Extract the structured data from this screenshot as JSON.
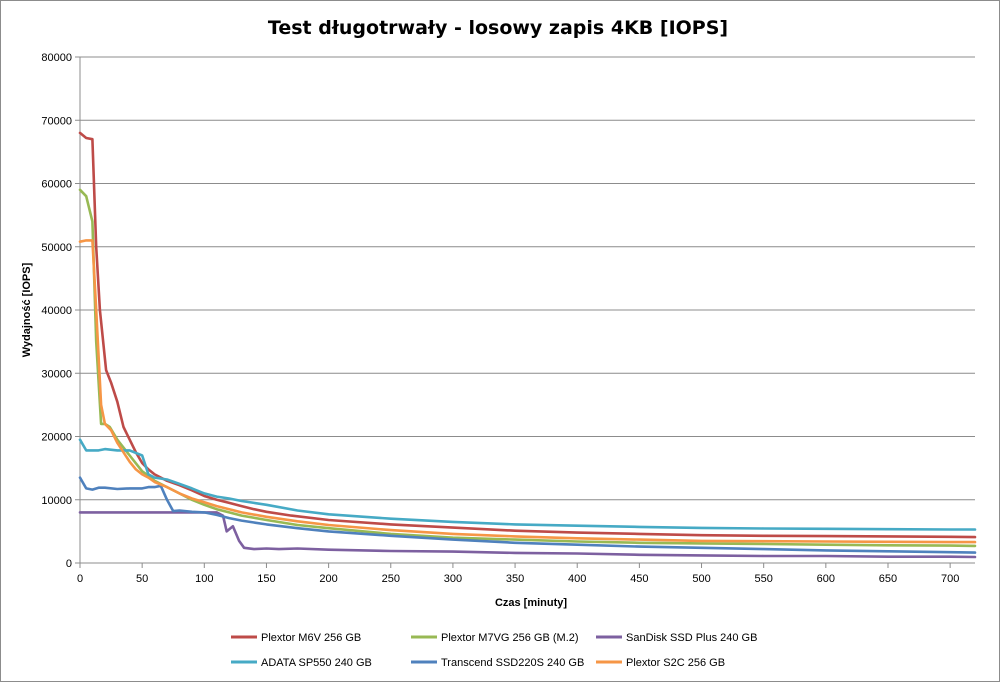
{
  "chart_data": {
    "type": "line",
    "title": "Test długotrwały - losowy zapis 4KB [IOPS]",
    "xlabel": "Czas [minuty]",
    "ylabel": "Wydajność [IOPS]",
    "xlim": [
      0,
      720
    ],
    "ylim": [
      0,
      80000
    ],
    "x_ticks": [
      "0",
      "50",
      "100",
      "150",
      "200",
      "250",
      "300",
      "350",
      "400",
      "450",
      "500",
      "550",
      "600",
      "650",
      "700"
    ],
    "y_ticks": [
      "0",
      "10000",
      "20000",
      "30000",
      "40000",
      "50000",
      "60000",
      "70000",
      "80000"
    ],
    "grid": "horizontal",
    "legend_position": "bottom",
    "series": [
      {
        "name": "Plextor M6V 256 GB",
        "color": "#be4b48",
        "points": [
          [
            0,
            68000
          ],
          [
            5,
            67200
          ],
          [
            10,
            67000
          ],
          [
            13,
            50000
          ],
          [
            16,
            40000
          ],
          [
            21,
            30500
          ],
          [
            25,
            28500
          ],
          [
            30,
            25500
          ],
          [
            35,
            21500
          ],
          [
            40,
            19500
          ],
          [
            45,
            17500
          ],
          [
            50,
            15800
          ],
          [
            55,
            14800
          ],
          [
            60,
            14000
          ],
          [
            70,
            13000
          ],
          [
            80,
            12300
          ],
          [
            90,
            11500
          ],
          [
            100,
            10600
          ],
          [
            110,
            10000
          ],
          [
            120,
            9500
          ],
          [
            130,
            9000
          ],
          [
            140,
            8500
          ],
          [
            150,
            8100
          ],
          [
            170,
            7500
          ],
          [
            200,
            6800
          ],
          [
            250,
            6100
          ],
          [
            300,
            5600
          ],
          [
            350,
            5100
          ],
          [
            400,
            4800
          ],
          [
            450,
            4600
          ],
          [
            500,
            4400
          ],
          [
            550,
            4300
          ],
          [
            600,
            4250
          ],
          [
            650,
            4200
          ],
          [
            700,
            4150
          ],
          [
            720,
            4100
          ]
        ]
      },
      {
        "name": "Plextor M7VG 256 GB (M.2)",
        "color": "#98b954",
        "points": [
          [
            0,
            59000
          ],
          [
            5,
            58000
          ],
          [
            10,
            54000
          ],
          [
            13,
            35000
          ],
          [
            17,
            22000
          ],
          [
            20,
            22000
          ],
          [
            24,
            21500
          ],
          [
            30,
            19500
          ],
          [
            40,
            17000
          ],
          [
            50,
            14500
          ],
          [
            55,
            13800
          ],
          [
            60,
            13000
          ],
          [
            70,
            12000
          ],
          [
            80,
            11000
          ],
          [
            90,
            10000
          ],
          [
            100,
            9200
          ],
          [
            110,
            8500
          ],
          [
            120,
            8000
          ],
          [
            130,
            7500
          ],
          [
            150,
            6800
          ],
          [
            175,
            6000
          ],
          [
            200,
            5500
          ],
          [
            250,
            4600
          ],
          [
            300,
            4000
          ],
          [
            350,
            3700
          ],
          [
            400,
            3400
          ],
          [
            450,
            3200
          ],
          [
            500,
            3100
          ],
          [
            550,
            3000
          ],
          [
            600,
            2900
          ],
          [
            650,
            2800
          ],
          [
            700,
            2750
          ],
          [
            720,
            2700
          ]
        ]
      },
      {
        "name": "SanDisk SSD  Plus 240 GB",
        "color": "#7d60a0",
        "points": [
          [
            0,
            8000
          ],
          [
            20,
            8000
          ],
          [
            40,
            8000
          ],
          [
            60,
            8000
          ],
          [
            80,
            8000
          ],
          [
            100,
            8000
          ],
          [
            110,
            8000
          ],
          [
            115,
            7500
          ],
          [
            118,
            5000
          ],
          [
            123,
            5800
          ],
          [
            128,
            3500
          ],
          [
            132,
            2400
          ],
          [
            140,
            2200
          ],
          [
            150,
            2300
          ],
          [
            160,
            2200
          ],
          [
            175,
            2300
          ],
          [
            200,
            2100
          ],
          [
            250,
            1900
          ],
          [
            300,
            1800
          ],
          [
            350,
            1600
          ],
          [
            400,
            1500
          ],
          [
            450,
            1300
          ],
          [
            500,
            1200
          ],
          [
            550,
            1100
          ],
          [
            600,
            1100
          ],
          [
            650,
            1000
          ],
          [
            700,
            1000
          ],
          [
            720,
            950
          ]
        ]
      },
      {
        "name": "ADATA SP550 240 GB",
        "color": "#46aac5",
        "points": [
          [
            0,
            19500
          ],
          [
            5,
            17800
          ],
          [
            15,
            17800
          ],
          [
            20,
            18000
          ],
          [
            30,
            17800
          ],
          [
            40,
            17800
          ],
          [
            50,
            17000
          ],
          [
            55,
            14000
          ],
          [
            60,
            13500
          ],
          [
            70,
            13200
          ],
          [
            80,
            12500
          ],
          [
            90,
            11800
          ],
          [
            100,
            11000
          ],
          [
            110,
            10500
          ],
          [
            120,
            10200
          ],
          [
            130,
            9800
          ],
          [
            140,
            9500
          ],
          [
            150,
            9200
          ],
          [
            175,
            8300
          ],
          [
            200,
            7700
          ],
          [
            250,
            7000
          ],
          [
            300,
            6500
          ],
          [
            350,
            6100
          ],
          [
            400,
            5900
          ],
          [
            450,
            5700
          ],
          [
            500,
            5550
          ],
          [
            550,
            5450
          ],
          [
            600,
            5400
          ],
          [
            650,
            5350
          ],
          [
            700,
            5300
          ],
          [
            720,
            5300
          ]
        ]
      },
      {
        "name": "Transcend SSD220S 240 GB",
        "color": "#4f81bd",
        "points": [
          [
            0,
            13500
          ],
          [
            5,
            11800
          ],
          [
            10,
            11600
          ],
          [
            15,
            11900
          ],
          [
            20,
            11900
          ],
          [
            30,
            11700
          ],
          [
            40,
            11800
          ],
          [
            50,
            11800
          ],
          [
            55,
            12000
          ],
          [
            60,
            12000
          ],
          [
            65,
            12200
          ],
          [
            70,
            10000
          ],
          [
            75,
            8200
          ],
          [
            80,
            8300
          ],
          [
            90,
            8100
          ],
          [
            100,
            8000
          ],
          [
            110,
            7600
          ],
          [
            120,
            7100
          ],
          [
            130,
            6700
          ],
          [
            140,
            6400
          ],
          [
            150,
            6100
          ],
          [
            175,
            5500
          ],
          [
            200,
            5000
          ],
          [
            250,
            4300
          ],
          [
            300,
            3700
          ],
          [
            350,
            3200
          ],
          [
            400,
            2900
          ],
          [
            450,
            2600
          ],
          [
            500,
            2400
          ],
          [
            550,
            2200
          ],
          [
            600,
            2000
          ],
          [
            650,
            1850
          ],
          [
            700,
            1700
          ],
          [
            720,
            1650
          ]
        ]
      },
      {
        "name": "Plextor S2C 256 GB",
        "color": "#f69646",
        "points": [
          [
            0,
            50800
          ],
          [
            5,
            51000
          ],
          [
            10,
            51000
          ],
          [
            13,
            40000
          ],
          [
            17,
            25000
          ],
          [
            20,
            22000
          ],
          [
            25,
            21000
          ],
          [
            30,
            19000
          ],
          [
            35,
            17500
          ],
          [
            40,
            16000
          ],
          [
            45,
            14800
          ],
          [
            50,
            14000
          ],
          [
            55,
            13500
          ],
          [
            60,
            12800
          ],
          [
            70,
            12000
          ],
          [
            80,
            11000
          ],
          [
            90,
            10200
          ],
          [
            100,
            9600
          ],
          [
            110,
            9000
          ],
          [
            120,
            8500
          ],
          [
            130,
            8000
          ],
          [
            150,
            7300
          ],
          [
            175,
            6600
          ],
          [
            200,
            6000
          ],
          [
            250,
            5200
          ],
          [
            300,
            4600
          ],
          [
            350,
            4200
          ],
          [
            400,
            3900
          ],
          [
            450,
            3700
          ],
          [
            500,
            3500
          ],
          [
            550,
            3450
          ],
          [
            600,
            3400
          ],
          [
            650,
            3350
          ],
          [
            700,
            3300
          ],
          [
            720,
            3300
          ]
        ]
      }
    ]
  }
}
